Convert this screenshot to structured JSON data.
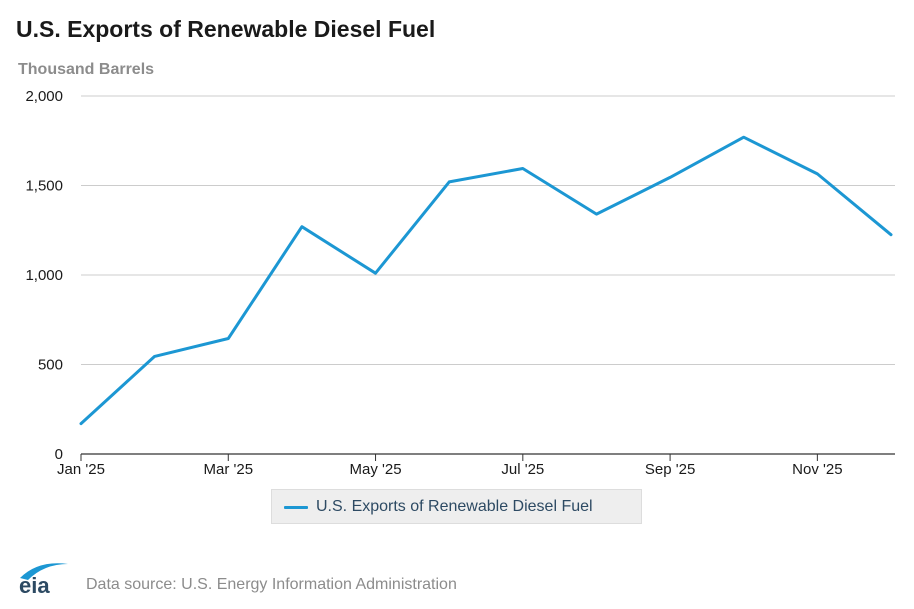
{
  "header": {
    "title": "U.S. Exports of Renewable Diesel Fuel",
    "subtitle": "Thousand Barrels"
  },
  "legend": {
    "label": "U.S. Exports of Renewable Diesel Fuel"
  },
  "footer": {
    "logo_text": "eia",
    "source": "Data source: U.S. Energy Information Administration"
  },
  "colors": {
    "series": "#1c97d3",
    "grid": "#cccccc",
    "axis": "#333333"
  },
  "chart_data": {
    "type": "line",
    "title": "U.S. Exports of Renewable Diesel Fuel",
    "ylabel": "Thousand Barrels",
    "xlabel": "",
    "x": [
      "Jan '25",
      "Feb '25",
      "Mar '25",
      "Apr '25",
      "May '25",
      "Jun '25",
      "Jul '25",
      "Aug '25",
      "Sep '25",
      "Oct '25",
      "Nov '25",
      "Dec '25"
    ],
    "x_tick_labels": [
      "Jan '25",
      "Mar '25",
      "May '25",
      "Jul '25",
      "Sep '25",
      "Nov '25"
    ],
    "y_ticks": [
      0,
      500,
      1000,
      1500,
      2000
    ],
    "y_tick_labels": [
      "0",
      "500",
      "1,000",
      "1,500",
      "2,000"
    ],
    "ylim": [
      0,
      2000
    ],
    "grid": true,
    "legend_position": "bottom-center",
    "series": [
      {
        "name": "U.S. Exports of Renewable Diesel Fuel",
        "values": [
          170,
          545,
          645,
          1270,
          1010,
          1520,
          1595,
          1340,
          1545,
          1770,
          1565,
          1225
        ]
      }
    ]
  }
}
